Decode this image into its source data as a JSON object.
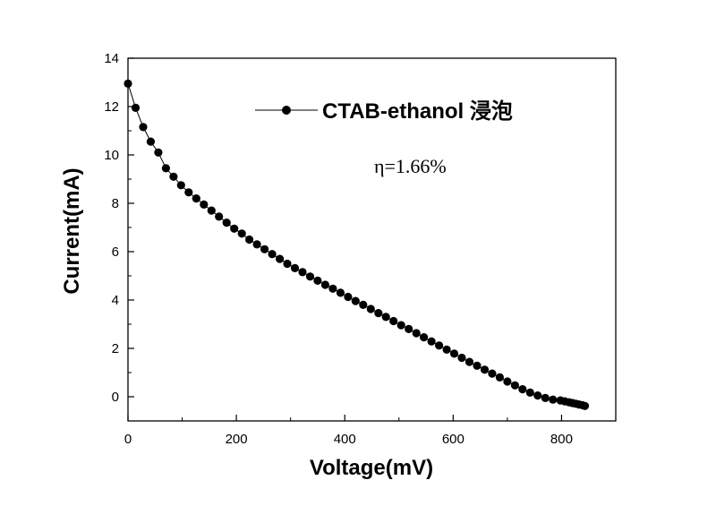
{
  "chart_data": {
    "type": "line",
    "xlabel": "Voltage(mV)",
    "ylabel": "Current(mA)",
    "xlim": [
      0,
      900
    ],
    "ylim": [
      -1,
      14
    ],
    "x_ticks": [
      0,
      200,
      400,
      600,
      800
    ],
    "x_tick_labels": [
      "0",
      "200",
      "400",
      "600",
      "800"
    ],
    "y_ticks": [
      0,
      2,
      4,
      6,
      8,
      10,
      12,
      14
    ],
    "y_tick_labels": [
      "0",
      "2",
      "4",
      "6",
      "8",
      "10",
      "12",
      "14"
    ],
    "legend": {
      "label": "CTAB-ethanol 浸泡",
      "position": "top-right"
    },
    "annotation": "η=1.66%",
    "grid": false,
    "colors": {
      "series": "#000000",
      "axis": "#000000"
    },
    "series": [
      {
        "name": "CTAB-ethanol 浸泡",
        "x": [
          0,
          14,
          28,
          42,
          56,
          70,
          84,
          98,
          112,
          126,
          140,
          154,
          168,
          182,
          196,
          210,
          224,
          238,
          252,
          266,
          280,
          294,
          308,
          322,
          336,
          350,
          364,
          378,
          392,
          406,
          420,
          434,
          448,
          462,
          476,
          490,
          504,
          518,
          532,
          546,
          560,
          574,
          588,
          602,
          616,
          630,
          644,
          658,
          672,
          686,
          700,
          714,
          728,
          742,
          756,
          770,
          784,
          798,
          806,
          814,
          820,
          826,
          832,
          838,
          843
        ],
        "y": [
          12.95,
          11.95,
          11.15,
          10.55,
          10.1,
          9.45,
          9.1,
          8.75,
          8.45,
          8.2,
          7.95,
          7.7,
          7.45,
          7.2,
          6.95,
          6.75,
          6.5,
          6.3,
          6.1,
          5.9,
          5.7,
          5.5,
          5.32,
          5.15,
          4.97,
          4.8,
          4.63,
          4.47,
          4.3,
          4.13,
          3.96,
          3.8,
          3.63,
          3.46,
          3.3,
          3.13,
          2.96,
          2.8,
          2.63,
          2.46,
          2.29,
          2.12,
          1.95,
          1.78,
          1.61,
          1.44,
          1.28,
          1.12,
          0.96,
          0.8,
          0.63,
          0.47,
          0.31,
          0.17,
          0.05,
          -0.05,
          -0.12,
          -0.15,
          -0.19,
          -0.23,
          -0.26,
          -0.29,
          -0.32,
          -0.35,
          -0.38
        ]
      }
    ]
  }
}
